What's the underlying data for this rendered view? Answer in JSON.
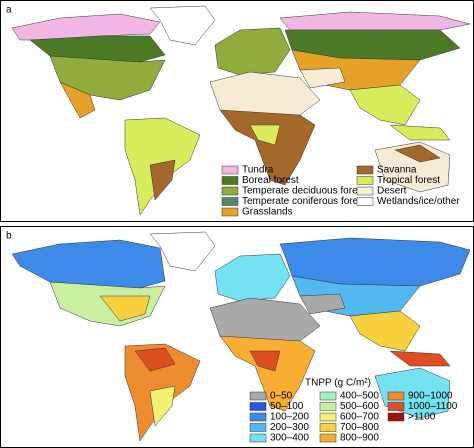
{
  "panels": [
    {
      "label": "a",
      "legend": [
        {
          "label": "Tundra",
          "color": "#f2b6e4"
        },
        {
          "label": "Boreal forest",
          "color": "#4d7a26"
        },
        {
          "label": "Temperate deciduous forest",
          "color": "#8fac3c"
        },
        {
          "label": "Temperate coniferous forest",
          "color": "#4f8a6c"
        },
        {
          "label": "Grasslands",
          "color": "#e6a128"
        },
        {
          "label": "Savanna",
          "color": "#a5682b"
        },
        {
          "label": "Tropical forest",
          "color": "#d9ec5c"
        },
        {
          "label": "Desert",
          "color": "#f6ecd6"
        },
        {
          "label": "Wetlands/ice/other",
          "color": "#ffffff"
        }
      ]
    },
    {
      "label": "b",
      "legend_title": "TNPP (g C/m²)",
      "legend": [
        {
          "label": "0–50",
          "color": "#a9a9a9"
        },
        {
          "label": "50–100",
          "color": "#2b57e6"
        },
        {
          "label": "100–200",
          "color": "#3d8ae8"
        },
        {
          "label": "200–300",
          "color": "#52b9f0"
        },
        {
          "label": "300–400",
          "color": "#74e2f2"
        },
        {
          "label": "400–500",
          "color": "#a4f0c4"
        },
        {
          "label": "500–600",
          "color": "#c9f0a0"
        },
        {
          "label": "600–700",
          "color": "#f1f070"
        },
        {
          "label": "700–800",
          "color": "#f7d040"
        },
        {
          "label": "800–900",
          "color": "#f7ae32"
        },
        {
          "label": "900–1000",
          "color": "#ef8c30"
        },
        {
          "label": "1000–1100",
          "color": "#dd4f20"
        },
        {
          "label": ">1100",
          "color": "#a01010"
        }
      ]
    }
  ]
}
